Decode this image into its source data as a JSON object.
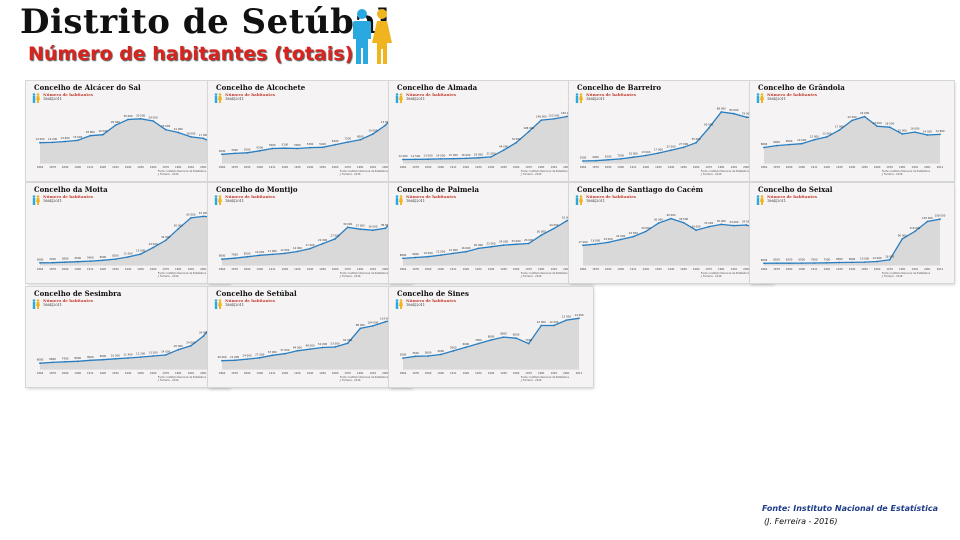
{
  "header": {
    "title": "Distrito de Setúbal",
    "subtitle": "Número de habitantes (totais)"
  },
  "legend": {
    "line1": "Número de habitantes",
    "line2": "1864|2011"
  },
  "panel_note": {
    "line1": "Fonte: Instituto Nacional de Estatística",
    "line2": "J. Ferreira - 2016"
  },
  "footer": {
    "source": "Fonte: Instituto Nacional de Estatística",
    "author": "(J. Ferreira - 2016)"
  },
  "colors": {
    "line": "#2a7ec0",
    "area": "#d9d9d9",
    "title_red": "#d9231f",
    "panel_bg": "#f5f3f4"
  },
  "chart_data": [
    {
      "type": "area",
      "title": "Concelho de Alcácer do Sal",
      "x": [
        "1864",
        "1878",
        "1890",
        "1900",
        "1911",
        "1920",
        "1930",
        "1940",
        "1950",
        "1960",
        "1970",
        "1981",
        "1991",
        "2001",
        "2011"
      ],
      "values": [
        14000,
        14200,
        14800,
        15600,
        18800,
        19500,
        26000,
        30000,
        30500,
        29000,
        23000,
        21000,
        18000,
        17000,
        13000
      ],
      "ylim": [
        0,
        40000
      ]
    },
    {
      "type": "area",
      "title": "Concelho de Alcochete",
      "x": [
        "1864",
        "1878",
        "1890",
        "1900",
        "1911",
        "1920",
        "1930",
        "1940",
        "1950",
        "1960",
        "1970",
        "1981",
        "1991",
        "2001",
        "2011"
      ],
      "values": [
        3000,
        3300,
        3500,
        4200,
        5000,
        5100,
        5000,
        5300,
        5400,
        6300,
        7200,
        8000,
        10000,
        13000,
        17500
      ],
      "ylim": [
        0,
        20000
      ]
    },
    {
      "type": "area",
      "title": "Concelho de Almada",
      "x": [
        "1864",
        "1878",
        "1890",
        "1900",
        "1911",
        "1920",
        "1930",
        "1940",
        "1950",
        "1960",
        "1970",
        "1981",
        "1991",
        "2001",
        "2011"
      ],
      "values": [
        12000,
        12500,
        13000,
        14000,
        15000,
        16000,
        18000,
        21000,
        44000,
        70000,
        108000,
        148000,
        152000,
        160000,
        174000
      ],
      "ylim": [
        0,
        200000
      ]
    },
    {
      "type": "area",
      "title": "Concelho de Barreiro",
      "x": [
        "1864",
        "1878",
        "1890",
        "1900",
        "1911",
        "1920",
        "1930",
        "1940",
        "1950",
        "1960",
        "1970",
        "1981",
        "1991",
        "2001",
        "2011"
      ],
      "values": [
        3500,
        4000,
        5500,
        7000,
        10000,
        13000,
        17000,
        22000,
        27000,
        35000,
        60000,
        88000,
        85000,
        79000,
        78000
      ],
      "ylim": [
        0,
        100000
      ]
    },
    {
      "type": "area",
      "title": "Concelho de Grândola",
      "x": [
        "1864",
        "1878",
        "1890",
        "1900",
        "1911",
        "1920",
        "1930",
        "1940",
        "1950",
        "1960",
        "1970",
        "1981",
        "1991",
        "2001",
        "2011"
      ],
      "values": [
        8000,
        9000,
        9500,
        10000,
        12000,
        13500,
        17000,
        22000,
        24000,
        19000,
        18500,
        15000,
        16000,
        14500,
        14800
      ],
      "ylim": [
        0,
        30000
      ]
    },
    {
      "type": "area",
      "title": "Concelho da Moita",
      "x": [
        "1864",
        "1878",
        "1890",
        "1900",
        "1911",
        "1920",
        "1930",
        "1940",
        "1950",
        "1960",
        "1970",
        "1981",
        "1991",
        "2001",
        "2011"
      ],
      "values": [
        3000,
        3200,
        3800,
        4500,
        5400,
        6500,
        8200,
        11000,
        15000,
        24000,
        34000,
        50000,
        65000,
        67000,
        66000
      ],
      "ylim": [
        0,
        80000
      ]
    },
    {
      "type": "area",
      "title": "Concelho do Montijo",
      "x": [
        "1864",
        "1878",
        "1890",
        "1900",
        "1911",
        "1920",
        "1930",
        "1940",
        "1950",
        "1960",
        "1970",
        "1981",
        "1991",
        "2001",
        "2011"
      ],
      "values": [
        6000,
        7000,
        8500,
        10000,
        11000,
        12000,
        14000,
        17000,
        22000,
        27000,
        39000,
        37000,
        36000,
        38000,
        51000
      ],
      "ylim": [
        0,
        60000
      ]
    },
    {
      "type": "area",
      "title": "Concelho de Palmela",
      "x": [
        "1864",
        "1878",
        "1890",
        "1900",
        "1911",
        "1920",
        "1930",
        "1940",
        "1950",
        "1960",
        "1970",
        "1981",
        "1991",
        "2001",
        "2011"
      ],
      "values": [
        8000,
        9000,
        10000,
        12000,
        14000,
        16000,
        20000,
        22000,
        24000,
        25000,
        26000,
        36000,
        44000,
        53000,
        62000
      ],
      "ylim": [
        0,
        70000
      ]
    },
    {
      "type": "area",
      "title": "Concelho de Santiago do Cacém",
      "x": [
        "1864",
        "1878",
        "1890",
        "1900",
        "1911",
        "1920",
        "1930",
        "1940",
        "1950",
        "1960",
        "1970",
        "1981",
        "1991",
        "2001",
        "2011"
      ],
      "values": [
        17000,
        18000,
        19500,
        22000,
        24500,
        29000,
        36000,
        40000,
        36500,
        30000,
        33000,
        35000,
        34000,
        34500,
        31000
      ],
      "ylim": [
        0,
        50000
      ]
    },
    {
      "type": "area",
      "title": "Concelho do Seixal",
      "x": [
        "1864",
        "1878",
        "1890",
        "1900",
        "1911",
        "1920",
        "1930",
        "1940",
        "1950",
        "1960",
        "1970",
        "1981",
        "1991",
        "2001",
        "2011"
      ],
      "values": [
        6000,
        6500,
        6200,
        6500,
        7000,
        7500,
        8500,
        9000,
        10000,
        12000,
        18000,
        90000,
        116000,
        150000,
        158000
      ],
      "ylim": [
        0,
        200000
      ]
    },
    {
      "type": "area",
      "title": "Concelho de Sesimbra",
      "x": [
        "1864",
        "1878",
        "1890",
        "1900",
        "1911",
        "1920",
        "1930",
        "1940",
        "1950",
        "1960",
        "1970",
        "1981",
        "1991",
        "2001",
        "2011"
      ],
      "values": [
        6000,
        6800,
        7400,
        8000,
        9000,
        9600,
        10500,
        11400,
        12300,
        13500,
        14500,
        20000,
        24000,
        34000,
        49500
      ],
      "ylim": [
        0,
        60000
      ]
    },
    {
      "type": "area",
      "title": "Concelho de Setúbal",
      "x": [
        "1864",
        "1878",
        "1890",
        "1900",
        "1911",
        "1920",
        "1930",
        "1940",
        "1950",
        "1960",
        "1970",
        "1981",
        "1991",
        "2001",
        "2011"
      ],
      "values": [
        20000,
        21000,
        24000,
        27000,
        33000,
        37000,
        44000,
        48000,
        52000,
        53000,
        62000,
        98000,
        104000,
        114000,
        121000
      ],
      "ylim": [
        0,
        140000
      ]
    },
    {
      "type": "area",
      "title": "Concelho de Sines",
      "x": [
        "1864",
        "1878",
        "1890",
        "1900",
        "1911",
        "1920",
        "1930",
        "1940",
        "1950",
        "1960",
        "1970",
        "1981",
        "1991",
        "2001",
        "2011"
      ],
      "values": [
        3000,
        3500,
        3600,
        4000,
        5000,
        6000,
        7000,
        8000,
        8800,
        8500,
        7000,
        12000,
        12000,
        13500,
        14000
      ],
      "ylim": [
        0,
        16000
      ]
    }
  ]
}
